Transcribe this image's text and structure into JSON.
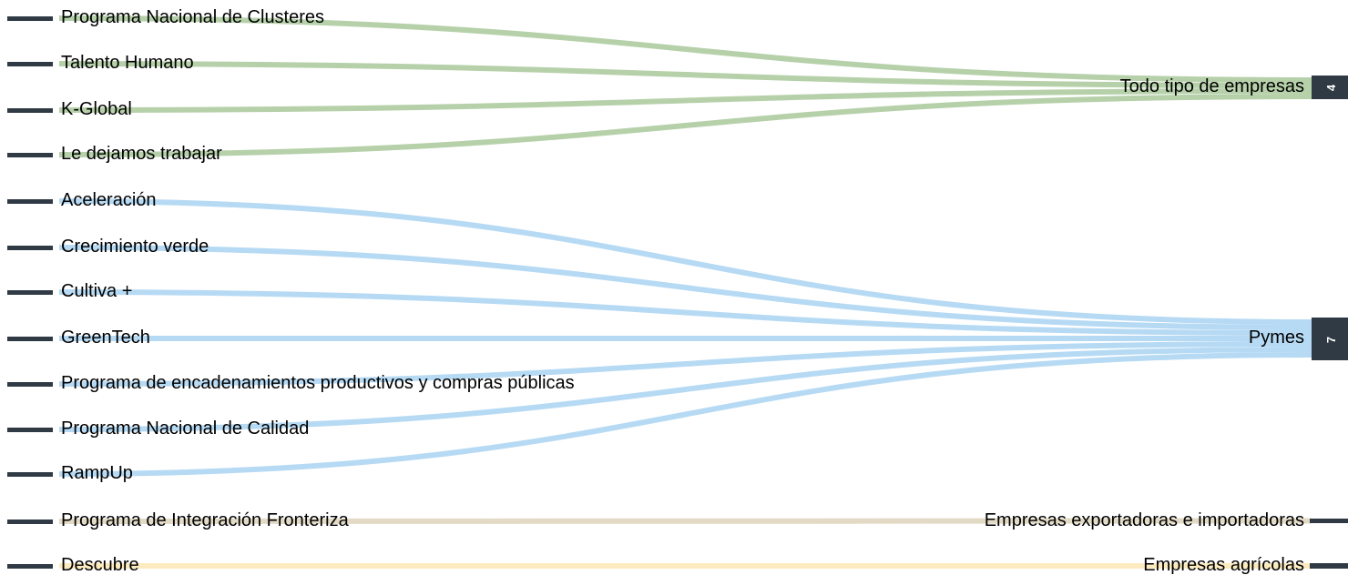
{
  "sources": [
    {
      "label": "Programa Nacional de Clusteres",
      "target": 0
    },
    {
      "label": "Talento Humano",
      "target": 0
    },
    {
      "label": "K-Global",
      "target": 0
    },
    {
      "label": "Le dejamos trabajar",
      "target": 0
    },
    {
      "label": "Aceleración",
      "target": 1
    },
    {
      "label": "Crecimiento verde",
      "target": 1
    },
    {
      "label": "Cultiva +",
      "target": 1
    },
    {
      "label": "GreenTech",
      "target": 1
    },
    {
      "label": "Programa de encadenamientos productivos y compras públicas",
      "target": 1
    },
    {
      "label": "Programa Nacional de Calidad",
      "target": 1
    },
    {
      "label": "RampUp",
      "target": 1
    },
    {
      "label": "Programa de Integración Fronteriza",
      "target": 2
    },
    {
      "label": "Descubre",
      "target": 3
    }
  ],
  "targets": [
    {
      "label": "Todo tipo de empresas",
      "count": "4",
      "color": "#a9c99b"
    },
    {
      "label": "Pymes",
      "count": "7",
      "color": "#a9d3f2"
    },
    {
      "label": "Empresas exportadoras e importadoras",
      "count": "",
      "color": "#ddd3bb"
    },
    {
      "label": "Empresas agrícolas",
      "count": "",
      "color": "#fbe7b3"
    }
  ],
  "colors": {
    "node": "#2f3a45"
  }
}
